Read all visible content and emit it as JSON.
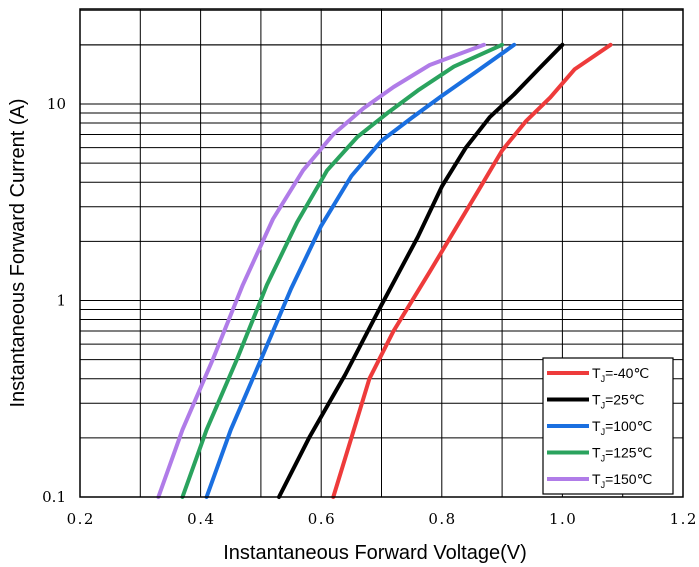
{
  "chart_data": {
    "type": "line",
    "xlabel": "Instantaneous Forward Voltage(V)",
    "ylabel": "Instantaneous Forward Current (A)",
    "xlim": [
      0.2,
      1.2
    ],
    "ylim": [
      0.1,
      25
    ],
    "yscale": "log",
    "x_ticks": [
      "0.2",
      "0.4",
      "0.6",
      "0.8",
      "1.0",
      "1.2"
    ],
    "y_ticks": [
      "0.1",
      "1",
      "10"
    ],
    "grid": true,
    "legend_position": "bottom-right",
    "series": [
      {
        "name": "T_J=-40℃",
        "prefix": "T",
        "subscript": "J",
        "suffix": "=-40℃",
        "color": "#ee3b3b",
        "points": [
          [
            0.62,
            0.1
          ],
          [
            0.65,
            0.2
          ],
          [
            0.68,
            0.4
          ],
          [
            0.72,
            0.7
          ],
          [
            0.78,
            1.4
          ],
          [
            0.86,
            3.6
          ],
          [
            0.9,
            5.8
          ],
          [
            0.94,
            8.2
          ],
          [
            0.98,
            10.8
          ],
          [
            1.02,
            15
          ],
          [
            1.08,
            20
          ]
        ]
      },
      {
        "name": "T_J=25℃",
        "prefix": "T",
        "subscript": "J",
        "suffix": "=25℃",
        "color": "#000000",
        "points": [
          [
            0.53,
            0.1
          ],
          [
            0.58,
            0.2
          ],
          [
            0.64,
            0.42
          ],
          [
            0.7,
            0.95
          ],
          [
            0.76,
            2.1
          ],
          [
            0.8,
            3.8
          ],
          [
            0.84,
            6.0
          ],
          [
            0.88,
            8.6
          ],
          [
            0.92,
            11.2
          ],
          [
            0.96,
            15
          ],
          [
            1.0,
            20
          ]
        ]
      },
      {
        "name": "T_J=100℃",
        "prefix": "T",
        "subscript": "J",
        "suffix": "=100℃",
        "color": "#1a6fe0",
        "points": [
          [
            0.41,
            0.1
          ],
          [
            0.45,
            0.22
          ],
          [
            0.5,
            0.5
          ],
          [
            0.55,
            1.15
          ],
          [
            0.6,
            2.4
          ],
          [
            0.65,
            4.3
          ],
          [
            0.7,
            6.5
          ],
          [
            0.75,
            8.5
          ],
          [
            0.8,
            11.0
          ],
          [
            0.86,
            14.8
          ],
          [
            0.92,
            20
          ]
        ]
      },
      {
        "name": "T_J=125℃",
        "prefix": "T",
        "subscript": "J",
        "suffix": "=125℃",
        "color": "#2aa35e",
        "points": [
          [
            0.37,
            0.1
          ],
          [
            0.41,
            0.22
          ],
          [
            0.46,
            0.5
          ],
          [
            0.51,
            1.2
          ],
          [
            0.56,
            2.5
          ],
          [
            0.61,
            4.6
          ],
          [
            0.66,
            6.8
          ],
          [
            0.71,
            9.0
          ],
          [
            0.76,
            11.7
          ],
          [
            0.82,
            15.5
          ],
          [
            0.9,
            20
          ]
        ]
      },
      {
        "name": "T_J=150℃",
        "prefix": "T",
        "subscript": "J",
        "suffix": "=150℃",
        "color": "#b07ce8",
        "points": [
          [
            0.33,
            0.1
          ],
          [
            0.37,
            0.22
          ],
          [
            0.42,
            0.5
          ],
          [
            0.47,
            1.2
          ],
          [
            0.52,
            2.6
          ],
          [
            0.57,
            4.6
          ],
          [
            0.62,
            7.0
          ],
          [
            0.67,
            9.5
          ],
          [
            0.72,
            12.2
          ],
          [
            0.78,
            15.8
          ],
          [
            0.87,
            20
          ]
        ]
      }
    ]
  }
}
